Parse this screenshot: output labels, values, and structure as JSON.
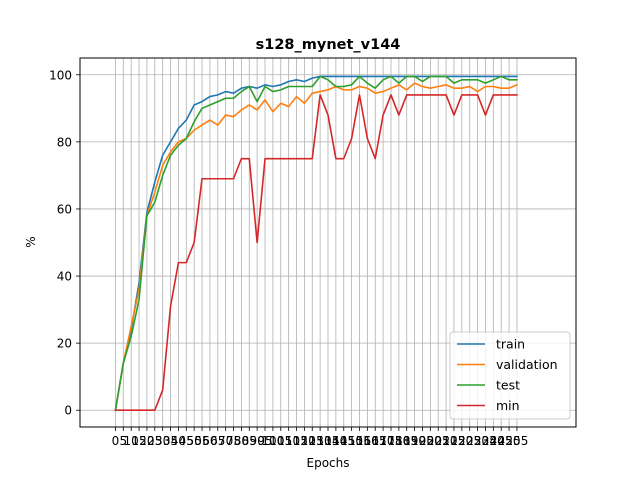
{
  "chart_data": {
    "type": "line",
    "title": "s128_mynet_v144",
    "xlabel": "Epochs",
    "ylabel": "%",
    "xlim": [
      -4.5,
      58.5
    ],
    "ylim": [
      -5,
      105
    ],
    "grid": true,
    "legend_position": "lower-right",
    "x_ticks": [
      0,
      5,
      10,
      15,
      20,
      25,
      30,
      35,
      40,
      45,
      50,
      55,
      60,
      65,
      70,
      75,
      80,
      85,
      90,
      95,
      100,
      105,
      110,
      115,
      120,
      125,
      130,
      135,
      140,
      145,
      150,
      155,
      160,
      165,
      170,
      175,
      180,
      185,
      190,
      195,
      200,
      205,
      210,
      215,
      220,
      225,
      230,
      235,
      240,
      245,
      250,
      255
    ],
    "x_tick_labels": [
      "0",
      "5",
      "10",
      "15",
      "20",
      "25",
      "30",
      "35",
      "40",
      "45",
      "50",
      "55",
      "60",
      "65",
      "70",
      "75",
      "80",
      "85",
      "90",
      "95",
      "100",
      "105",
      "110",
      "115",
      "120",
      "125",
      "130",
      "135",
      "140",
      "145",
      "150",
      "155",
      "160",
      "165",
      "170",
      "175",
      "180",
      "185",
      "190",
      "195",
      "200",
      "205",
      "210",
      "215",
      "220",
      "225",
      "230",
      "235",
      "240",
      "245",
      "250",
      "255"
    ],
    "y_ticks": [
      0,
      20,
      40,
      60,
      80,
      100
    ],
    "y_tick_labels": [
      "0",
      "20",
      "40",
      "60",
      "80",
      "100"
    ],
    "x": [
      0,
      1,
      2,
      3,
      4,
      5,
      6,
      7,
      8,
      9,
      10,
      11,
      12,
      13,
      14,
      15,
      16,
      17,
      18,
      19,
      20,
      21,
      22,
      23,
      24,
      25,
      26,
      27,
      28,
      29,
      30,
      31,
      32,
      33,
      34,
      35,
      36,
      37,
      38,
      39,
      40,
      41,
      42,
      43,
      44,
      45,
      46,
      47,
      48,
      49,
      50,
      51
    ],
    "series": [
      {
        "name": "train",
        "color": "#1f77b4",
        "values": [
          0,
          14,
          24,
          38,
          59,
          68,
          76,
          80,
          84,
          86.5,
          91,
          92,
          93.5,
          94,
          95,
          94.5,
          96,
          96.5,
          96,
          97,
          96.5,
          97,
          98,
          98.5,
          98,
          99,
          99.5,
          99.5,
          99.5,
          99.5,
          99.5,
          99.5,
          99.5,
          99.5,
          99.5,
          99.5,
          99.5,
          99.5,
          99.5,
          99.5,
          99.5,
          99.5,
          99.5,
          99.5,
          99.5,
          99.5,
          99.5,
          99.5,
          99.5,
          99.5,
          99.5,
          99.5
        ]
      },
      {
        "name": "validation",
        "color": "#ff7f0e",
        "values": [
          0,
          14,
          25,
          36,
          58,
          65,
          73,
          77,
          80,
          81,
          83.5,
          85,
          86.5,
          85,
          88,
          87.5,
          89.5,
          91,
          89.5,
          92.5,
          89,
          91.5,
          90.5,
          93.5,
          91.5,
          94.5,
          95,
          95.5,
          96.5,
          95.5,
          95.5,
          96.5,
          96,
          94.5,
          95,
          96,
          97,
          95.5,
          97.5,
          96.5,
          96,
          96.5,
          97,
          96,
          96,
          96.5,
          95,
          96.5,
          96.5,
          96,
          96,
          97
        ]
      },
      {
        "name": "test",
        "color": "#2ca02c",
        "values": [
          0,
          14,
          22,
          33,
          58,
          62,
          70,
          76,
          79,
          81,
          86,
          90,
          91,
          92,
          93,
          93,
          95,
          96.5,
          92,
          96.5,
          95,
          95.5,
          96.5,
          96.5,
          96.5,
          96.5,
          99.5,
          98.5,
          96.5,
          96.5,
          97,
          99.5,
          97.5,
          96,
          98.5,
          99.5,
          97.5,
          99.5,
          99.5,
          98,
          99.5,
          99.5,
          99.5,
          97.5,
          98.5,
          98.5,
          98.5,
          97.5,
          98.5,
          99.5,
          98.5,
          98.5
        ]
      },
      {
        "name": "min",
        "color": "#d62728",
        "values": [
          0,
          0,
          0,
          0,
          0,
          0,
          6,
          31,
          44,
          44,
          50,
          69,
          69,
          69,
          69,
          69,
          75,
          75,
          50,
          75,
          75,
          75,
          75,
          75,
          75,
          75,
          94,
          88,
          75,
          75,
          81,
          94,
          81,
          75,
          88,
          94,
          88,
          94,
          94,
          94,
          94,
          94,
          94,
          88,
          94,
          94,
          94,
          88,
          94,
          94,
          94,
          94
        ]
      }
    ]
  }
}
